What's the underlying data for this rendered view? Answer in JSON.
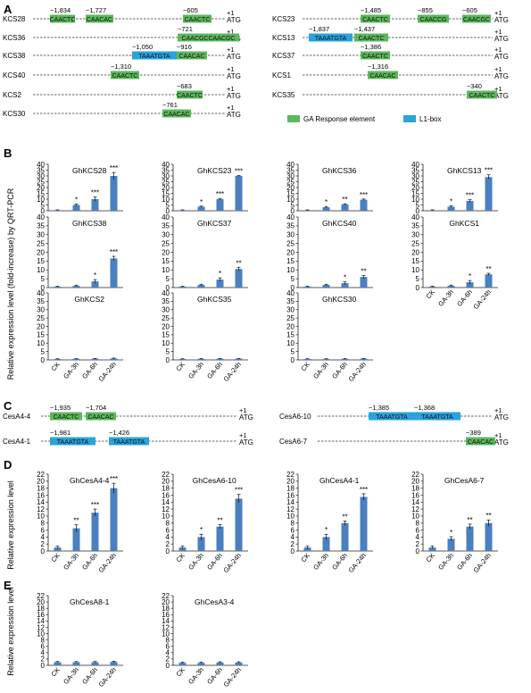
{
  "panels": {
    "A": "A",
    "B": "B",
    "C": "C",
    "D": "D",
    "E": "E"
  },
  "promoter_common": {
    "tss": "+1",
    "start": "ATG"
  },
  "legend": [
    {
      "label": "GA Response element",
      "color": "#5cb85c"
    },
    {
      "label": "L1-box",
      "color": "#29a3dc"
    }
  ],
  "colors": {
    "ga_element": "#5cb85c",
    "l1_box": "#29a3dc",
    "bar": "#4a7fc0"
  },
  "promoters_A_left": [
    {
      "name": "KCS28",
      "elements": [
        {
          "pos": "−1,834",
          "seq": "CAACTC",
          "type": "ga"
        },
        {
          "pos": "−1,727",
          "seq": "CAACAC",
          "type": "ga"
        },
        {
          "pos": "−605",
          "seq": "CAACTC",
          "type": "ga"
        }
      ]
    },
    {
      "name": "KCS36",
      "elements": [
        {
          "pos": "−721",
          "seq": "CAACGCCAACGC",
          "type": "ga"
        }
      ]
    },
    {
      "name": "KCS38",
      "elements": [
        {
          "pos": "−1,050",
          "seq": "TAAATGTA",
          "type": "l1"
        },
        {
          "pos": "−916",
          "seq": "CAACAC",
          "type": "ga"
        }
      ]
    },
    {
      "name": "KCS40",
      "elements": [
        {
          "pos": "−1,310",
          "seq": "CAACTC",
          "type": "ga"
        }
      ]
    },
    {
      "name": "KCS2",
      "elements": [
        {
          "pos": "−683",
          "seq": "CAACTC",
          "type": "ga"
        }
      ]
    },
    {
      "name": "KCS30",
      "elements": [
        {
          "pos": "−761",
          "seq": "CAACAC",
          "type": "ga"
        }
      ]
    }
  ],
  "promoters_A_right": [
    {
      "name": "KCS23",
      "elements": [
        {
          "pos": "−1,485",
          "seq": "CAACTC",
          "type": "ga"
        },
        {
          "pos": "−855",
          "seq": "CAACCG",
          "type": "ga"
        },
        {
          "pos": "−605",
          "seq": "CAACGC",
          "type": "ga"
        }
      ]
    },
    {
      "name": "KCS13",
      "elements": [
        {
          "pos": "−1,837",
          "seq": "TAAATGTA",
          "type": "l1"
        },
        {
          "pos": "−1,437",
          "seq": "CAACTC",
          "type": "ga"
        }
      ]
    },
    {
      "name": "KCS37",
      "elements": [
        {
          "pos": "−1,386",
          "seq": "CAACTC",
          "type": "ga"
        }
      ]
    },
    {
      "name": "KCS1",
      "elements": [
        {
          "pos": "−1,316",
          "seq": "CAACAC",
          "type": "ga"
        }
      ]
    },
    {
      "name": "KCS35",
      "elements": [
        {
          "pos": "−340",
          "seq": "CAACTC",
          "type": "ga"
        }
      ]
    }
  ],
  "promoters_C": [
    {
      "name": "CesA4-4",
      "elements": [
        {
          "pos": "−1,935",
          "seq": "CAACTC",
          "type": "ga"
        },
        {
          "pos": "−1,704",
          "seq": "CAACAC",
          "type": "ga"
        }
      ]
    },
    {
      "name": "CesA4-1",
      "elements": [
        {
          "pos": "−1,981",
          "seq": "TAAATGTA",
          "type": "l1"
        },
        {
          "pos": "−1,426",
          "seq": "TAAATGTA",
          "type": "l1"
        }
      ]
    },
    {
      "name": "CesA6-10",
      "elements": [
        {
          "pos": "−1,385",
          "seq": "TAAATGTA",
          "type": "l1"
        },
        {
          "pos": "−1,368",
          "seq": "TAAATGTA",
          "type": "l1"
        }
      ]
    },
    {
      "name": "CesA6-7",
      "elements": [
        {
          "pos": "−389",
          "seq": "CAACAC",
          "type": "ga"
        }
      ]
    }
  ],
  "axis_B_ylabel": "Relative expression level (fold-increase) by QRT-PCR",
  "axis_DE_ylabel": "Relative expression level",
  "chart_data": [
    {
      "type": "bar",
      "title": "GhKCS28",
      "categories": [
        "CK",
        "GA-3h",
        "GA-6h",
        "GA-24h"
      ],
      "values": [
        0.5,
        5,
        10,
        30
      ],
      "errors": [
        0.3,
        0.9,
        1.8,
        3.0
      ],
      "sig": [
        "",
        "*",
        "***",
        "***"
      ],
      "ylim": [
        0,
        40
      ],
      "yticks": [
        0,
        5,
        10,
        15,
        20,
        25,
        30,
        35,
        40
      ]
    },
    {
      "type": "bar",
      "title": "GhKCS23",
      "categories": [
        "CK",
        "GA-3h",
        "GA-6h",
        "GA-24h"
      ],
      "values": [
        0.5,
        3.5,
        10,
        30
      ],
      "errors": [
        0.3,
        0.5,
        0.6,
        0.4
      ],
      "sig": [
        "",
        "*",
        "***",
        "***"
      ],
      "ylim": [
        0,
        40
      ],
      "yticks": [
        0,
        5,
        10,
        15,
        20,
        25,
        30,
        35,
        40
      ]
    },
    {
      "type": "bar",
      "title": "GhKCS36",
      "categories": [
        "CK",
        "GA-3h",
        "GA-6h",
        "GA-24h"
      ],
      "values": [
        0.5,
        3,
        5.5,
        9.5
      ],
      "errors": [
        0.3,
        0.7,
        0.5,
        0.6
      ],
      "sig": [
        "",
        "*",
        "**",
        "***"
      ],
      "ylim": [
        0,
        40
      ],
      "yticks": [
        0,
        5,
        10,
        15,
        20,
        25,
        30,
        35,
        40
      ]
    },
    {
      "type": "bar",
      "title": "GhKCS13",
      "categories": [
        "CK",
        "GA-3h",
        "GA-6h",
        "GA-24h"
      ],
      "values": [
        0.5,
        3.5,
        8.5,
        29
      ],
      "errors": [
        0.3,
        0.8,
        1.0,
        2.0
      ],
      "sig": [
        "",
        "*",
        "***",
        "***"
      ],
      "ylim": [
        0,
        40
      ],
      "yticks": [
        0,
        5,
        10,
        15,
        20,
        25,
        30,
        35,
        40
      ]
    },
    {
      "type": "bar",
      "title": "GhKCS38",
      "categories": [
        "CK",
        "GA-3h",
        "GA-6h",
        "GA-24h"
      ],
      "values": [
        0.5,
        1,
        3.5,
        16.5
      ],
      "errors": [
        0.3,
        0.4,
        1.0,
        1.2
      ],
      "sig": [
        "",
        "",
        "*",
        "***"
      ],
      "ylim": [
        0,
        40
      ],
      "yticks": [
        0,
        5,
        10,
        15,
        20,
        25,
        30,
        35,
        40
      ]
    },
    {
      "type": "bar",
      "title": "GhKCS37",
      "categories": [
        "CK",
        "GA-3h",
        "GA-6h",
        "GA-24h"
      ],
      "values": [
        0.5,
        1.5,
        4.5,
        10.5
      ],
      "errors": [
        0.3,
        0.4,
        1.0,
        1.0
      ],
      "sig": [
        "",
        "",
        "*",
        "**"
      ],
      "ylim": [
        0,
        40
      ],
      "yticks": [
        0,
        5,
        10,
        15,
        20,
        25,
        30,
        35,
        40
      ]
    },
    {
      "type": "bar",
      "title": "GhKCS40",
      "categories": [
        "CK",
        "GA-3h",
        "GA-6h",
        "GA-24h"
      ],
      "values": [
        0.5,
        1.5,
        2.5,
        6
      ],
      "errors": [
        0.3,
        0.4,
        0.7,
        0.8
      ],
      "sig": [
        "",
        "",
        "*",
        "**"
      ],
      "ylim": [
        0,
        40
      ],
      "yticks": [
        0,
        5,
        10,
        15,
        20,
        25,
        30,
        35,
        40
      ]
    },
    {
      "type": "bar",
      "title": "GhKCS1",
      "categories": [
        "CK",
        "GA-3h",
        "GA-6h",
        "GA-24h"
      ],
      "values": [
        0.5,
        1,
        3,
        7.5
      ],
      "errors": [
        0.3,
        0.4,
        1.0,
        0.6
      ],
      "sig": [
        "",
        "",
        "*",
        "**"
      ],
      "ylim": [
        0,
        40
      ],
      "yticks": [
        0,
        5,
        10,
        15,
        20,
        25,
        30,
        35,
        40
      ]
    },
    {
      "type": "bar",
      "title": "GhKCS2",
      "categories": [
        "CK",
        "GA-3h",
        "GA-6h",
        "GA-24h"
      ],
      "values": [
        0.5,
        0.6,
        0.7,
        0.8
      ],
      "errors": [
        0.2,
        0.2,
        0.2,
        0.3
      ],
      "sig": [
        "",
        "",
        "",
        ""
      ],
      "ylim": [
        0,
        40
      ],
      "yticks": [
        0,
        5,
        10,
        15,
        20,
        25,
        30,
        35,
        40
      ]
    },
    {
      "type": "bar",
      "title": "GhKCS35",
      "categories": [
        "CK",
        "GA-3h",
        "GA-6h",
        "GA-24h"
      ],
      "values": [
        0.5,
        0.6,
        0.7,
        0.7
      ],
      "errors": [
        0.2,
        0.2,
        0.2,
        0.2
      ],
      "sig": [
        "",
        "",
        "",
        ""
      ],
      "ylim": [
        0,
        40
      ],
      "yticks": [
        0,
        5,
        10,
        15,
        20,
        25,
        30,
        35,
        40
      ]
    },
    {
      "type": "bar",
      "title": "GhKCS30",
      "categories": [
        "CK",
        "GA-3h",
        "GA-6h",
        "GA-24h"
      ],
      "values": [
        0.5,
        0.5,
        0.6,
        0.7
      ],
      "errors": [
        0.2,
        0.2,
        0.2,
        0.2
      ],
      "sig": [
        "",
        "",
        "",
        ""
      ],
      "ylim": [
        0,
        40
      ],
      "yticks": [
        0,
        5,
        10,
        15,
        20,
        25,
        30,
        35,
        40
      ]
    },
    {
      "type": "bar",
      "title": "GhCesA4-4",
      "categories": [
        "CK",
        "GA-3h",
        "GA-6h",
        "GA-24h"
      ],
      "values": [
        1,
        6.5,
        11,
        18
      ],
      "errors": [
        0.4,
        1.0,
        1.0,
        1.4
      ],
      "sig": [
        "",
        "**",
        "***",
        "***"
      ],
      "ylim": [
        0,
        22
      ],
      "yticks": [
        0,
        2,
        4,
        6,
        8,
        10,
        12,
        14,
        16,
        18,
        20,
        22
      ]
    },
    {
      "type": "bar",
      "title": "GhCesA6-10",
      "categories": [
        "CK",
        "GA-3h",
        "GA-6h",
        "GA-24h"
      ],
      "values": [
        1,
        4,
        7,
        15
      ],
      "errors": [
        0.4,
        0.8,
        0.6,
        1.2
      ],
      "sig": [
        "",
        "*",
        "**",
        "***"
      ],
      "ylim": [
        0,
        22
      ],
      "yticks": [
        0,
        2,
        4,
        6,
        8,
        10,
        12,
        14,
        16,
        18,
        20,
        22
      ]
    },
    {
      "type": "bar",
      "title": "GhCesA4-1",
      "categories": [
        "CK",
        "GA-3h",
        "GA-6h",
        "GA-24h"
      ],
      "values": [
        1,
        4,
        8,
        15.5
      ],
      "errors": [
        0.4,
        0.8,
        0.6,
        0.9
      ],
      "sig": [
        "",
        "*",
        "**",
        "***"
      ],
      "ylim": [
        0,
        22
      ],
      "yticks": [
        0,
        2,
        4,
        6,
        8,
        10,
        12,
        14,
        16,
        18,
        20,
        22
      ]
    },
    {
      "type": "bar",
      "title": "GhCesA6-7",
      "categories": [
        "CK",
        "GA-3h",
        "GA-6h",
        "GA-24h"
      ],
      "values": [
        1,
        3.5,
        7,
        8
      ],
      "errors": [
        0.4,
        0.6,
        0.7,
        0.9
      ],
      "sig": [
        "",
        "*",
        "**",
        "**"
      ],
      "ylim": [
        0,
        22
      ],
      "yticks": [
        0,
        2,
        4,
        6,
        8,
        10,
        12,
        14,
        16,
        18,
        20,
        22
      ]
    },
    {
      "type": "bar",
      "title": "GhCesA8-1",
      "categories": [
        "CK",
        "GA-3h",
        "GA-6h",
        "GA-24h"
      ],
      "values": [
        1,
        1,
        1,
        1.1
      ],
      "errors": [
        0.2,
        0.2,
        0.2,
        0.2
      ],
      "sig": [
        "",
        "",
        "",
        ""
      ],
      "ylim": [
        0,
        22
      ],
      "yticks": [
        0,
        2,
        4,
        6,
        8,
        10,
        12,
        14,
        16,
        18,
        20,
        22
      ]
    },
    {
      "type": "bar",
      "title": "GhCesA3-4",
      "categories": [
        "CK",
        "GA-3h",
        "GA-6h",
        "GA-24h"
      ],
      "values": [
        0.8,
        0.8,
        0.9,
        0.9
      ],
      "errors": [
        0.2,
        0.2,
        0.2,
        0.2
      ],
      "sig": [
        "",
        "",
        "",
        ""
      ],
      "ylim": [
        0,
        22
      ],
      "yticks": [
        0,
        2,
        4,
        6,
        8,
        10,
        12,
        14,
        16,
        18,
        20,
        22
      ]
    }
  ]
}
